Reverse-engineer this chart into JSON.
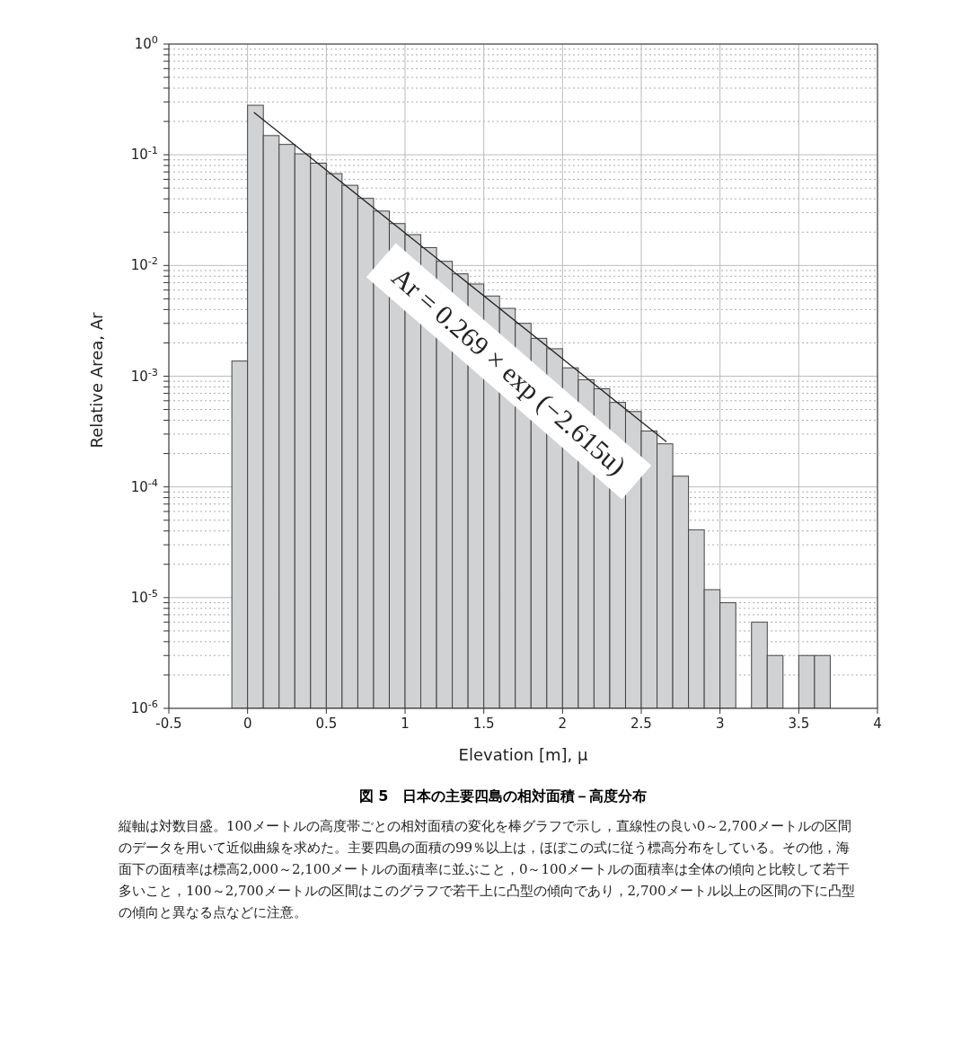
{
  "chart_data": {
    "type": "histogram",
    "title": "図 5　日本の主要四島の相対面積－高度分布",
    "xlabel": "Elevation [m], μ",
    "ylabel": "Relative Area, Ar",
    "bins": [
      -0.1,
      0,
      0.1,
      0.2,
      0.3,
      0.4,
      0.5,
      0.6,
      0.7,
      0.8,
      0.9,
      1.0,
      1.1,
      1.2,
      1.3,
      1.4,
      1.5,
      1.6,
      1.7,
      1.8,
      1.9,
      2.0,
      2.1,
      2.2,
      2.3,
      2.4,
      2.5,
      2.6,
      2.7,
      2.8,
      2.9,
      3.0,
      3.1,
      3.2,
      3.3,
      3.4,
      3.5,
      3.6,
      3.7
    ],
    "values": [
      0.00137,
      0.28,
      0.149,
      0.124,
      0.102,
      0.084,
      0.0675,
      0.053,
      0.0404,
      0.031,
      0.0239,
      0.019,
      0.0145,
      0.0109,
      0.0084,
      0.0068,
      0.0053,
      0.0041,
      0.003,
      0.0022,
      0.00177,
      0.00119,
      0.00093,
      0.00077,
      0.00058,
      0.00048,
      0.00032,
      0.000245,
      0.000125,
      4.1e-05,
      1.18e-05,
      9e-06,
      null,
      6e-06,
      3e-06,
      null,
      3e-06,
      3e-06
    ],
    "color": "#d1d2d4",
    "series": [
      {
        "type": "line",
        "x": [
          0.04,
          2.66
        ],
        "values": [
          0.242,
          0.000256
        ],
        "color": "#222222"
      }
    ],
    "log": true,
    "grid": true,
    "xlim": [
      -0.5,
      4
    ],
    "xticks": [
      -0.5,
      0,
      0.5,
      1,
      1.5,
      2,
      2.5,
      3,
      3.5,
      4
    ],
    "ylim": [
      1e-06,
      1
    ],
    "yticks": [
      {
        "value": 1e-06,
        "label": "10$^{-6}$"
      },
      {
        "value": 2e-06,
        "label": null
      },
      {
        "value": 3e-06,
        "label": null
      },
      {
        "value": 4e-06,
        "label": null
      },
      {
        "value": 5e-06,
        "label": null
      },
      {
        "value": 6e-06,
        "label": null
      },
      {
        "value": 7e-06,
        "label": null
      },
      {
        "value": 8e-06,
        "label": null
      },
      {
        "value": 9e-06,
        "label": null
      },
      {
        "value": 1e-05,
        "label": "10$^{-5}$"
      },
      {
        "value": 2e-05,
        "label": null
      },
      {
        "value": 3e-05,
        "label": null
      },
      {
        "value": 4e-05,
        "label": null
      },
      {
        "value": 5e-05,
        "label": null
      },
      {
        "value": 6e-05,
        "label": null
      },
      {
        "value": 7e-05,
        "label": null
      },
      {
        "value": 8e-05,
        "label": null
      },
      {
        "value": 9e-05,
        "label": null
      },
      {
        "value": 0.0001,
        "label": "10$^{-4}$"
      },
      {
        "value": 0.0002,
        "label": null
      },
      {
        "value": 0.0003,
        "label": null
      },
      {
        "value": 0.0004,
        "label": null
      },
      {
        "value": 0.0005,
        "label": null
      },
      {
        "value": 0.0006,
        "label": null
      },
      {
        "value": 0.0007,
        "label": null
      },
      {
        "value": 0.0008,
        "label": null
      },
      {
        "value": 0.0009,
        "label": null
      },
      {
        "value": 0.001,
        "label": "10$^{-3}$"
      },
      {
        "value": 0.002,
        "label": null
      },
      {
        "value": 0.003,
        "label": null
      },
      {
        "value": 0.004,
        "label": null
      },
      {
        "value": 0.005,
        "label": null
      },
      {
        "value": 0.006,
        "label": null
      },
      {
        "value": 0.007,
        "label": null
      },
      {
        "value": 0.008,
        "label": null
      },
      {
        "value": 0.009,
        "label": null
      },
      {
        "value": 0.01,
        "label": "10$^{-2}$"
      },
      {
        "value": 0.02,
        "label": null
      },
      {
        "value": 0.03,
        "label": null
      },
      {
        "value": 0.04,
        "label": null
      },
      {
        "value": 0.05,
        "label": null
      },
      {
        "value": 0.06,
        "label": null
      },
      {
        "value": 0.07,
        "label": null
      },
      {
        "value": 0.08,
        "label": null
      },
      {
        "value": 0.09,
        "label": null
      },
      {
        "value": 0.1,
        "label": "10$^{-1}$"
      },
      {
        "value": 0.2,
        "label": null
      },
      {
        "value": 0.3,
        "label": null
      },
      {
        "value": 0.4,
        "label": null
      },
      {
        "value": 0.5,
        "label": null
      },
      {
        "value": 0.6,
        "label": null
      },
      {
        "value": 0.7,
        "label": null
      },
      {
        "value": 0.8,
        "label": null
      },
      {
        "value": 0.9,
        "label": null
      },
      {
        "value": 1,
        "label": "10$^{0}$"
      }
    ],
    "annotations": [
      "Ar = 0.269 × exp (−2.615u)",
      "縦軸は対数目盛。100メートルの高度帯ごとの相対面積の変化を棒グラフで示し，直線性の良い0～2,700メートルの区間のデータを用いて近似曲線を求めた。主要四島の面積の99％以上は，ほぼこの式に従う標高分布をしている。その他，海面下の面積率は標高2,000～2,100メートルの面積率に並ぶこと，0～100メートルの面積率は全体の傾向と比較して若干多いこと，100～2,700メートルの区間はこのグラフで若干上に凸型の傾向であり，2,700メートル以上の区間の下に凸型の傾向と異なる点などに注意。"
    ]
  }
}
